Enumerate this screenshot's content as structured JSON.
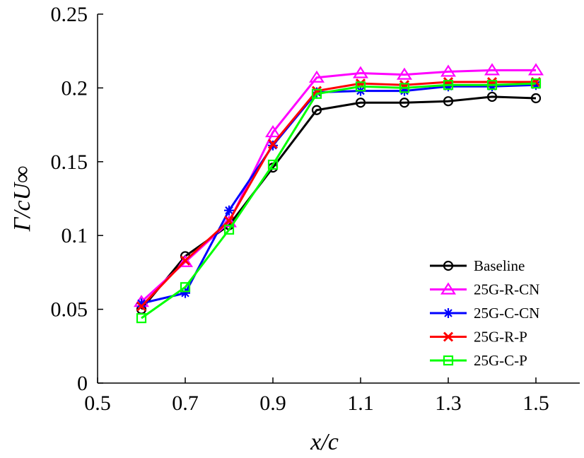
{
  "chart_data": {
    "type": "line",
    "title": "",
    "xlabel": "x/c",
    "ylabel": "Γ/cU∞",
    "xlim": [
      0.5,
      1.6
    ],
    "ylim": [
      0,
      0.25
    ],
    "x_ticks": [
      0.5,
      0.7,
      0.9,
      1.1,
      1.3,
      1.5
    ],
    "x_tick_labels": [
      "0.5",
      "0.7",
      "0.9",
      "1.1",
      "1.3",
      "1.5"
    ],
    "y_ticks": [
      0,
      0.05,
      0.1,
      0.15,
      0.2,
      0.25
    ],
    "y_tick_labels": [
      "0",
      "0.05",
      "0.1",
      "0.15",
      "0.2",
      "0.25"
    ],
    "legend_position": "bottom-right",
    "x": [
      0.6,
      0.7,
      0.8,
      0.9,
      1.0,
      1.1,
      1.2,
      1.3,
      1.4,
      1.5
    ],
    "series": [
      {
        "name": "Baseline",
        "color": "#000000",
        "marker": "circle",
        "values": [
          0.05,
          0.086,
          0.107,
          0.146,
          0.185,
          0.19,
          0.19,
          0.191,
          0.194,
          0.193
        ]
      },
      {
        "name": "25G-R-CN",
        "color": "#ff00ff",
        "marker": "triangle",
        "values": [
          0.055,
          0.082,
          0.109,
          0.17,
          0.207,
          0.21,
          0.209,
          0.211,
          0.212,
          0.212
        ]
      },
      {
        "name": "25G-C-CN",
        "color": "#0000ff",
        "marker": "asterisk",
        "values": [
          0.054,
          0.061,
          0.117,
          0.161,
          0.197,
          0.198,
          0.198,
          0.201,
          0.201,
          0.202
        ]
      },
      {
        "name": "25G-R-P",
        "color": "#ff0000",
        "marker": "x",
        "values": [
          0.052,
          0.083,
          0.11,
          0.162,
          0.198,
          0.203,
          0.202,
          0.204,
          0.204,
          0.204
        ]
      },
      {
        "name": "25G-C-P",
        "color": "#00ff00",
        "marker": "square",
        "values": [
          0.044,
          0.065,
          0.104,
          0.148,
          0.196,
          0.201,
          0.2,
          0.202,
          0.202,
          0.203
        ]
      }
    ]
  }
}
